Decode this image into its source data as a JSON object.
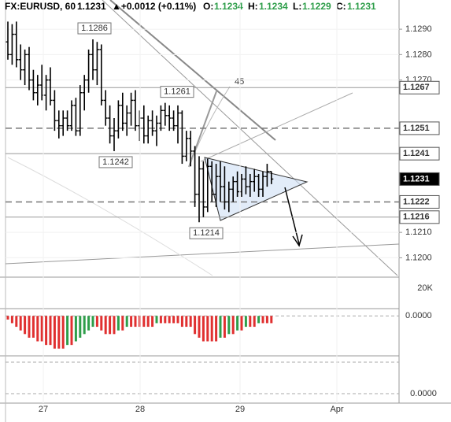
{
  "chart_data": {
    "type": "ohlc",
    "header": {
      "symbol": "FX:EURUSD, 60",
      "last": "1.1231",
      "change": "▲+0.0012 (+0.11%)",
      "o_label": "O:",
      "o": "1.1234",
      "h_label": "H:",
      "h": "1.1234",
      "l_label": "L:",
      "l": "1.1229",
      "c_label": "C:",
      "c": "1.1231"
    },
    "ylim": [
      1.1193,
      1.13015
    ],
    "yticks": [
      {
        "value": 1.129,
        "label": "1.1290"
      },
      {
        "value": 1.128,
        "label": "1.1280"
      },
      {
        "value": 1.127,
        "label": "1.1270"
      },
      {
        "value": 1.121,
        "label": "1.1210"
      },
      {
        "value": 1.12,
        "label": "1.1200"
      }
    ],
    "levels": [
      {
        "value": 1.1267,
        "style": "solid"
      },
      {
        "value": 1.1251,
        "style": "dashed"
      },
      {
        "value": 1.1241,
        "style": "solid"
      },
      {
        "value": 1.1231,
        "style": "current"
      },
      {
        "value": 1.1222,
        "style": "dashed"
      },
      {
        "value": 1.1216,
        "style": "solid"
      }
    ],
    "annotations": [
      1.1286,
      1.1261,
      1.1242,
      1.1214
    ],
    "angle_label": "45",
    "categories": [
      "27",
      "28",
      "29",
      "Apr"
    ],
    "color": "#000000",
    "ohlc": [
      [
        1.1285,
        1.1293,
        1.1278,
        1.128
      ],
      [
        1.128,
        1.1292,
        1.1276,
        1.1288
      ],
      [
        1.1288,
        1.1293,
        1.1275,
        1.1278
      ],
      [
        1.1278,
        1.1284,
        1.127,
        1.1274
      ],
      [
        1.1274,
        1.1282,
        1.1268,
        1.128
      ],
      [
        1.128,
        1.1283,
        1.1266,
        1.127
      ],
      [
        1.127,
        1.1274,
        1.1262,
        1.1265
      ],
      [
        1.1265,
        1.1272,
        1.126,
        1.1268
      ],
      [
        1.1268,
        1.1276,
        1.1262,
        1.1264
      ],
      [
        1.1264,
        1.1272,
        1.1258,
        1.127
      ],
      [
        1.127,
        1.1275,
        1.126,
        1.1262
      ],
      [
        1.1262,
        1.1266,
        1.125,
        1.1254
      ],
      [
        1.1254,
        1.1258,
        1.1247,
        1.1252
      ],
      [
        1.1252,
        1.1258,
        1.1248,
        1.1255
      ],
      [
        1.1255,
        1.1258,
        1.125,
        1.1252
      ],
      [
        1.1252,
        1.1262,
        1.125,
        1.126
      ],
      [
        1.126,
        1.1263,
        1.1248,
        1.125
      ],
      [
        1.125,
        1.1268,
        1.1248,
        1.1265
      ],
      [
        1.1265,
        1.1272,
        1.1258,
        1.127
      ],
      [
        1.127,
        1.1282,
        1.1265,
        1.128
      ],
      [
        1.128,
        1.1286,
        1.127,
        1.1274
      ],
      [
        1.1274,
        1.1285,
        1.1268,
        1.1282
      ],
      [
        1.1282,
        1.1284,
        1.126,
        1.1262
      ],
      [
        1.1262,
        1.1266,
        1.1252,
        1.1255
      ],
      [
        1.1255,
        1.126,
        1.1245,
        1.1248
      ],
      [
        1.1248,
        1.1255,
        1.1242,
        1.125
      ],
      [
        1.125,
        1.1262,
        1.1247,
        1.126
      ],
      [
        1.126,
        1.1265,
        1.125,
        1.1253
      ],
      [
        1.1253,
        1.126,
        1.1248,
        1.1257
      ],
      [
        1.1257,
        1.1265,
        1.1252,
        1.1262
      ],
      [
        1.1262,
        1.1266,
        1.125,
        1.1252
      ],
      [
        1.1252,
        1.1258,
        1.1246,
        1.1255
      ],
      [
        1.1255,
        1.126,
        1.1245,
        1.1248
      ],
      [
        1.1248,
        1.1256,
        1.1245,
        1.1254
      ],
      [
        1.1254,
        1.1258,
        1.1248,
        1.125
      ],
      [
        1.125,
        1.1256,
        1.1244,
        1.1253
      ],
      [
        1.1253,
        1.126,
        1.125,
        1.1258
      ],
      [
        1.1258,
        1.1261,
        1.1252,
        1.1256
      ],
      [
        1.1256,
        1.126,
        1.125,
        1.1255
      ],
      [
        1.1255,
        1.1258,
        1.125,
        1.1252
      ],
      [
        1.1252,
        1.126,
        1.1245,
        1.1257
      ],
      [
        1.1257,
        1.1258,
        1.1237,
        1.124
      ],
      [
        1.124,
        1.125,
        1.1238,
        1.1247
      ],
      [
        1.1247,
        1.125,
        1.1236,
        1.1242
      ],
      [
        1.1242,
        1.1244,
        1.122,
        1.1225
      ],
      [
        1.1225,
        1.124,
        1.1214,
        1.1235
      ],
      [
        1.1235,
        1.1238,
        1.1216,
        1.122
      ],
      [
        1.122,
        1.1239,
        1.1218,
        1.1236
      ],
      [
        1.1236,
        1.1238,
        1.1222,
        1.1225
      ],
      [
        1.1225,
        1.1237,
        1.122,
        1.1232
      ],
      [
        1.1232,
        1.1238,
        1.1222,
        1.1228
      ],
      [
        1.1228,
        1.1236,
        1.1219,
        1.1222
      ],
      [
        1.1222,
        1.123,
        1.1218,
        1.1227
      ],
      [
        1.1227,
        1.1232,
        1.1222,
        1.123
      ],
      [
        1.123,
        1.1234,
        1.1224,
        1.1226
      ],
      [
        1.1226,
        1.1233,
        1.1224,
        1.1231
      ],
      [
        1.1231,
        1.1236,
        1.1225,
        1.1228
      ],
      [
        1.1228,
        1.1233,
        1.1224,
        1.123
      ],
      [
        1.123,
        1.1235,
        1.1226,
        1.1232
      ],
      [
        1.1232,
        1.1233,
        1.1224,
        1.1227
      ],
      [
        1.1227,
        1.1234,
        1.1224,
        1.1232
      ],
      [
        1.1232,
        1.1237,
        1.1228,
        1.1234
      ],
      [
        1.1234,
        1.1234,
        1.1229,
        1.1231
      ]
    ],
    "volume_label": "20K",
    "macd": {
      "ylim": [
        -0.0011,
        0.0002
      ],
      "yticks": [
        {
          "value": 0,
          "label": "0.0000"
        }
      ],
      "values": [
        -0.0001,
        -0.0002,
        -0.0003,
        -0.0004,
        -0.0005,
        -0.0006,
        -0.0006,
        -0.0007,
        -0.0007,
        -0.0008,
        -0.0008,
        -0.0009,
        -0.0009,
        -0.0009,
        -0.0008,
        -0.0008,
        -0.0007,
        -0.0006,
        -0.0005,
        -0.0004,
        -0.0003,
        -0.0003,
        -0.0004,
        -0.0005,
        -0.0005,
        -0.0005,
        -0.0004,
        -0.0004,
        -0.0003,
        -0.0003,
        -0.0003,
        -0.0003,
        -0.0003,
        -0.0003,
        -0.0003,
        -0.0002,
        -0.0002,
        -0.0002,
        -0.0002,
        -0.0002,
        -0.0002,
        -0.0003,
        -0.0003,
        -0.0003,
        -0.0005,
        -0.0006,
        -0.0007,
        -0.0007,
        -0.0007,
        -0.0007,
        -0.0006,
        -0.0006,
        -0.0005,
        -0.0005,
        -0.0004,
        -0.0004,
        -0.0003,
        -0.0003,
        -0.0003,
        -0.0002,
        -0.0002,
        -0.0002,
        -0.0002
      ]
    },
    "stoch_label": "0.0000"
  }
}
